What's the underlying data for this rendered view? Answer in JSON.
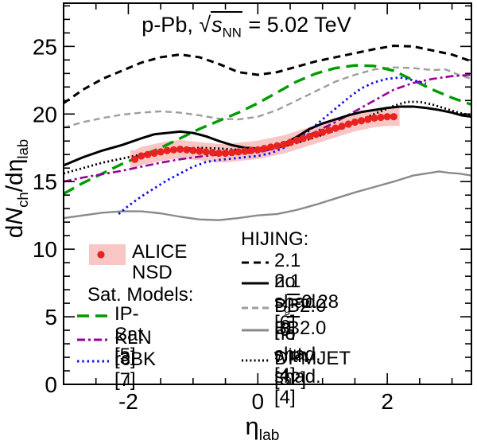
{
  "title": {
    "prefix": "p-Pb, ",
    "sqrt": "√",
    "s": "s",
    "s_sub": "NN",
    "suffix": " = 5.02 TeV"
  },
  "y_axis_label": {
    "d": "d",
    "N": "N",
    "N_sub": "ch",
    "slash": "/d",
    "eta": "η",
    "eta_sub": "lab"
  },
  "x_axis_label": {
    "eta": "η",
    "sub": "lab"
  },
  "axes": {
    "xlim": [
      -3.0,
      3.3
    ],
    "ylim": [
      0,
      28.2
    ],
    "x_tick_values": [
      -2,
      0,
      2
    ],
    "x_tick_labels": [
      "-2",
      "0",
      "2"
    ],
    "x_minor_step": 0.5,
    "y_tick_values": [
      0,
      5,
      10,
      15,
      20,
      25
    ],
    "y_tick_labels": [
      "0",
      "5",
      "10",
      "15",
      "20",
      "25"
    ],
    "y_minor_step": 1,
    "grid": false
  },
  "colors": {
    "black": "#000000",
    "red_marker": "#e8231f",
    "pink_band": "#f9c6c6",
    "green": "#009b00",
    "purple": "#990099",
    "blue": "#1010f0",
    "gray_dashed": "#9e9e9e",
    "gray_solid": "#8a8a8a",
    "frame": "#000000"
  },
  "series_styles": {
    "bb20_withshad": {
      "color": "#8a8a8a",
      "dash": "none",
      "width": 2.4
    },
    "bb20_noshad": {
      "color": "#9e9e9e",
      "dash": "8 5",
      "width": 2.4
    },
    "ipsat": {
      "color": "#009b00",
      "dash": "15 8",
      "width": 3.4
    },
    "kln": {
      "color": "#990099",
      "dash": "10 4 3 4",
      "width": 2.6
    },
    "rcbk": {
      "color": "#1010f0",
      "dash": "2.5 3.8",
      "width": 2.8
    },
    "dpmjet": {
      "color": "#000000",
      "dash": "2 3.2",
      "width": 2.8
    },
    "hijing21_noshad": {
      "color": "#000000",
      "dash": "9 6",
      "width": 3
    },
    "hijing21_sg": {
      "color": "#000000",
      "dash": "none",
      "width": 3
    }
  },
  "legend_left": {
    "alice_label": "ALICE NSD",
    "sat_header": "Sat. Models:",
    "items": [
      {
        "id": "ipsat",
        "label": "IP-Sat [5]"
      },
      {
        "id": "kln",
        "label": "KLN [3]"
      },
      {
        "id": "rcbk",
        "label": "rcBK [7]"
      }
    ]
  },
  "legend_right": {
    "header": "HIJING:",
    "items": [
      {
        "id": "hijing21_noshad",
        "pre": "2.1 no shad. [6]",
        "bar": "",
        "sub": "",
        "post": ""
      },
      {
        "id": "hijing21_sg",
        "pre": "2.1 s",
        "bar": "",
        "sub": "g",
        "post": "=0.28 [6]"
      },
      {
        "id": "bb20_noshad",
        "pre": "B",
        "bar": "B",
        "sub": "",
        "post": "2.0 no shad. [4]"
      },
      {
        "id": "bb20_withshad",
        "pre": "B",
        "bar": "B",
        "sub": "",
        "post": "2.0 with shad. [4]"
      },
      {
        "id": "dpmjet",
        "pre": "DPMJET [32]",
        "bar": "",
        "sub": "",
        "post": ""
      }
    ]
  },
  "chart_data": {
    "type": "line+scatter",
    "title": "p-Pb, sqrt(s_NN) = 5.02 TeV",
    "xlabel": "eta_lab",
    "ylabel": "dN_ch/deta_lab",
    "xlim": [
      -3.0,
      3.3
    ],
    "ylim": [
      0,
      28.2
    ],
    "legend_position": "inside lower half",
    "alice_nsd": {
      "name": "ALICE NSD",
      "marker": "filled red circle",
      "band": "pink systematic uncertainty band",
      "band_halfwidth": 0.68,
      "x": [
        -1.9,
        -1.8,
        -1.7,
        -1.6,
        -1.5,
        -1.4,
        -1.3,
        -1.2,
        -1.1,
        -1.0,
        -0.9,
        -0.8,
        -0.7,
        -0.6,
        -0.5,
        -0.4,
        -0.3,
        -0.2,
        -0.1,
        0.0,
        0.1,
        0.2,
        0.3,
        0.4,
        0.5,
        0.6,
        0.7,
        0.8,
        0.9,
        1.0,
        1.1,
        1.2,
        1.3,
        1.4,
        1.5,
        1.6,
        1.7,
        1.8,
        1.9,
        2.0,
        2.1
      ],
      "y": [
        16.65,
        16.9,
        17.0,
        17.1,
        17.2,
        17.3,
        17.35,
        17.4,
        17.35,
        17.3,
        17.25,
        17.2,
        17.15,
        17.1,
        17.1,
        17.15,
        17.2,
        17.25,
        17.3,
        17.35,
        17.45,
        17.55,
        17.65,
        17.75,
        17.9,
        18.05,
        18.2,
        18.35,
        18.5,
        18.65,
        18.8,
        18.95,
        19.1,
        19.25,
        19.4,
        19.5,
        19.6,
        19.7,
        19.75,
        19.8,
        19.8
      ]
    },
    "series": [
      {
        "id": "bb20_withshad",
        "name": "HIJING BB2.0 with shad. [4]",
        "points": [
          [
            -3.0,
            12.3
          ],
          [
            -2.7,
            12.5
          ],
          [
            -2.4,
            12.7
          ],
          [
            -2.1,
            12.8
          ],
          [
            -1.8,
            12.8
          ],
          [
            -1.5,
            12.65
          ],
          [
            -1.2,
            12.4
          ],
          [
            -0.9,
            12.2
          ],
          [
            -0.6,
            12.15
          ],
          [
            -0.3,
            12.3
          ],
          [
            0,
            12.5
          ],
          [
            0.3,
            12.6
          ],
          [
            0.6,
            12.9
          ],
          [
            0.9,
            13.3
          ],
          [
            1.2,
            13.75
          ],
          [
            1.5,
            14.2
          ],
          [
            1.8,
            14.6
          ],
          [
            2.1,
            15.0
          ],
          [
            2.4,
            15.45
          ],
          [
            2.6,
            15.6
          ],
          [
            2.8,
            15.75
          ],
          [
            2.95,
            15.65
          ],
          [
            3.1,
            15.6
          ],
          [
            3.3,
            15.45
          ]
        ]
      },
      {
        "id": "bb20_noshad",
        "name": "HIJING BB2.0 no shad. [4]",
        "points": [
          [
            -3.0,
            19.0
          ],
          [
            -2.7,
            19.4
          ],
          [
            -2.4,
            19.7
          ],
          [
            -2.1,
            19.95
          ],
          [
            -1.8,
            20.1
          ],
          [
            -1.5,
            20.2
          ],
          [
            -1.2,
            20.1
          ],
          [
            -0.9,
            19.9
          ],
          [
            -0.6,
            19.65
          ],
          [
            -0.3,
            19.6
          ],
          [
            0,
            19.8
          ],
          [
            0.3,
            20.3
          ],
          [
            0.6,
            21.0
          ],
          [
            0.9,
            21.7
          ],
          [
            1.2,
            22.4
          ],
          [
            1.5,
            22.9
          ],
          [
            1.8,
            23.3
          ],
          [
            2.1,
            23.45
          ],
          [
            2.4,
            23.4
          ],
          [
            2.7,
            23.25
          ],
          [
            2.9,
            23.3
          ],
          [
            3.1,
            22.9
          ],
          [
            3.3,
            22.6
          ]
        ]
      },
      {
        "id": "ipsat",
        "name": "IP-Sat [5]",
        "points": [
          [
            -3.0,
            14.1
          ],
          [
            -2.7,
            14.9
          ],
          [
            -2.4,
            15.6
          ],
          [
            -2.1,
            16.3
          ],
          [
            -1.8,
            16.9
          ],
          [
            -1.5,
            17.5
          ],
          [
            -1.2,
            18.2
          ],
          [
            -0.9,
            18.9
          ],
          [
            -0.6,
            19.5
          ],
          [
            -0.3,
            20.1
          ],
          [
            0,
            20.8
          ],
          [
            0.3,
            21.6
          ],
          [
            0.6,
            22.4
          ],
          [
            0.9,
            23.0
          ],
          [
            1.2,
            23.4
          ],
          [
            1.5,
            23.6
          ],
          [
            1.8,
            23.55
          ],
          [
            2.1,
            23.2
          ],
          [
            2.4,
            22.5
          ],
          [
            2.7,
            21.8
          ],
          [
            3.0,
            21.2
          ],
          [
            3.3,
            20.7
          ]
        ]
      },
      {
        "id": "kln",
        "name": "KLN [3]",
        "points": [
          [
            -3.0,
            15.0
          ],
          [
            -2.7,
            15.3
          ],
          [
            -2.4,
            15.55
          ],
          [
            -2.1,
            15.8
          ],
          [
            -1.8,
            16.1
          ],
          [
            -1.5,
            16.4
          ],
          [
            -1.2,
            16.65
          ],
          [
            -0.9,
            16.85
          ],
          [
            -0.6,
            17.0
          ],
          [
            -0.3,
            17.1
          ],
          [
            0,
            17.15
          ],
          [
            0.3,
            17.5
          ],
          [
            0.6,
            18.0
          ],
          [
            0.9,
            18.7
          ],
          [
            1.2,
            19.4
          ],
          [
            1.5,
            20.2
          ],
          [
            1.8,
            21.0
          ],
          [
            2.1,
            21.8
          ],
          [
            2.4,
            22.3
          ],
          [
            2.7,
            22.6
          ],
          [
            3.0,
            22.8
          ],
          [
            3.3,
            22.9
          ]
        ]
      },
      {
        "id": "rcbk",
        "name": "rcBK [7]",
        "points": [
          [
            -2.15,
            12.6
          ],
          [
            -2.0,
            13.2
          ],
          [
            -1.8,
            13.9
          ],
          [
            -1.6,
            14.5
          ],
          [
            -1.4,
            15.1
          ],
          [
            -1.2,
            15.6
          ],
          [
            -1.0,
            16.1
          ],
          [
            -0.8,
            16.45
          ],
          [
            -0.6,
            16.6
          ],
          [
            -0.4,
            16.7
          ],
          [
            -0.2,
            16.8
          ],
          [
            0,
            16.9
          ],
          [
            0.2,
            17.1
          ],
          [
            0.4,
            17.5
          ],
          [
            0.6,
            18.1
          ],
          [
            0.8,
            18.8
          ],
          [
            1.0,
            19.6
          ],
          [
            1.2,
            20.4
          ],
          [
            1.4,
            21.2
          ],
          [
            1.6,
            21.9
          ],
          [
            1.8,
            22.35
          ],
          [
            2.0,
            22.6
          ],
          [
            2.2,
            22.7
          ],
          [
            2.4,
            22.5
          ],
          [
            2.6,
            22.25
          ]
        ]
      },
      {
        "id": "dpmjet",
        "name": "DPMJET [32]",
        "points": [
          [
            -3.0,
            15.6
          ],
          [
            -2.7,
            16.0
          ],
          [
            -2.4,
            16.4
          ],
          [
            -2.1,
            16.7
          ],
          [
            -1.8,
            17.0
          ],
          [
            -1.5,
            17.25
          ],
          [
            -1.2,
            17.4
          ],
          [
            -0.9,
            17.5
          ],
          [
            -0.6,
            17.45
          ],
          [
            -0.3,
            17.35
          ],
          [
            0,
            17.35
          ],
          [
            0.3,
            17.5
          ],
          [
            0.6,
            17.85
          ],
          [
            0.9,
            18.3
          ],
          [
            1.2,
            18.8
          ],
          [
            1.5,
            19.4
          ],
          [
            1.8,
            20.0
          ],
          [
            2.1,
            20.6
          ],
          [
            2.3,
            20.9
          ],
          [
            2.5,
            20.9
          ],
          [
            2.7,
            20.7
          ],
          [
            2.9,
            20.4
          ],
          [
            3.1,
            20.1
          ],
          [
            3.3,
            19.9
          ]
        ]
      },
      {
        "id": "hijing21_noshad",
        "name": "HIJING 2.1 no shad. [6]",
        "points": [
          [
            -3.0,
            20.8
          ],
          [
            -2.7,
            21.8
          ],
          [
            -2.4,
            22.6
          ],
          [
            -2.1,
            23.2
          ],
          [
            -1.8,
            23.8
          ],
          [
            -1.5,
            24.2
          ],
          [
            -1.2,
            24.4
          ],
          [
            -0.9,
            24.2
          ],
          [
            -0.6,
            23.7
          ],
          [
            -0.3,
            23.1
          ],
          [
            0,
            22.9
          ],
          [
            0.3,
            23.1
          ],
          [
            0.6,
            23.5
          ],
          [
            0.9,
            23.9
          ],
          [
            1.2,
            24.2
          ],
          [
            1.5,
            24.5
          ],
          [
            1.8,
            24.8
          ],
          [
            2.1,
            25.05
          ],
          [
            2.4,
            25.0
          ],
          [
            2.7,
            24.7
          ],
          [
            3.0,
            24.4
          ],
          [
            3.3,
            23.9
          ]
        ]
      },
      {
        "id": "hijing21_sg",
        "name": "HIJING 2.1 s_g=0.28 [6]",
        "points": [
          [
            -3.0,
            16.2
          ],
          [
            -2.7,
            16.8
          ],
          [
            -2.4,
            17.3
          ],
          [
            -2.1,
            17.7
          ],
          [
            -1.8,
            18.2
          ],
          [
            -1.6,
            18.5
          ],
          [
            -1.4,
            18.6
          ],
          [
            -1.2,
            18.7
          ],
          [
            -1.0,
            18.6
          ],
          [
            -0.8,
            18.35
          ],
          [
            -0.6,
            18.0
          ],
          [
            -0.4,
            17.7
          ],
          [
            -0.2,
            17.5
          ],
          [
            0,
            17.45
          ],
          [
            0.2,
            17.55
          ],
          [
            0.4,
            17.8
          ],
          [
            0.6,
            18.3
          ],
          [
            0.8,
            18.9
          ],
          [
            1.0,
            19.3
          ],
          [
            1.2,
            19.6
          ],
          [
            1.4,
            19.9
          ],
          [
            1.6,
            20.15
          ],
          [
            1.8,
            20.3
          ],
          [
            2.0,
            20.45
          ],
          [
            2.2,
            20.55
          ],
          [
            2.4,
            20.55
          ],
          [
            2.6,
            20.45
          ],
          [
            2.8,
            20.3
          ],
          [
            3.0,
            20.1
          ],
          [
            3.15,
            19.9
          ],
          [
            3.3,
            19.8
          ]
        ]
      }
    ]
  }
}
